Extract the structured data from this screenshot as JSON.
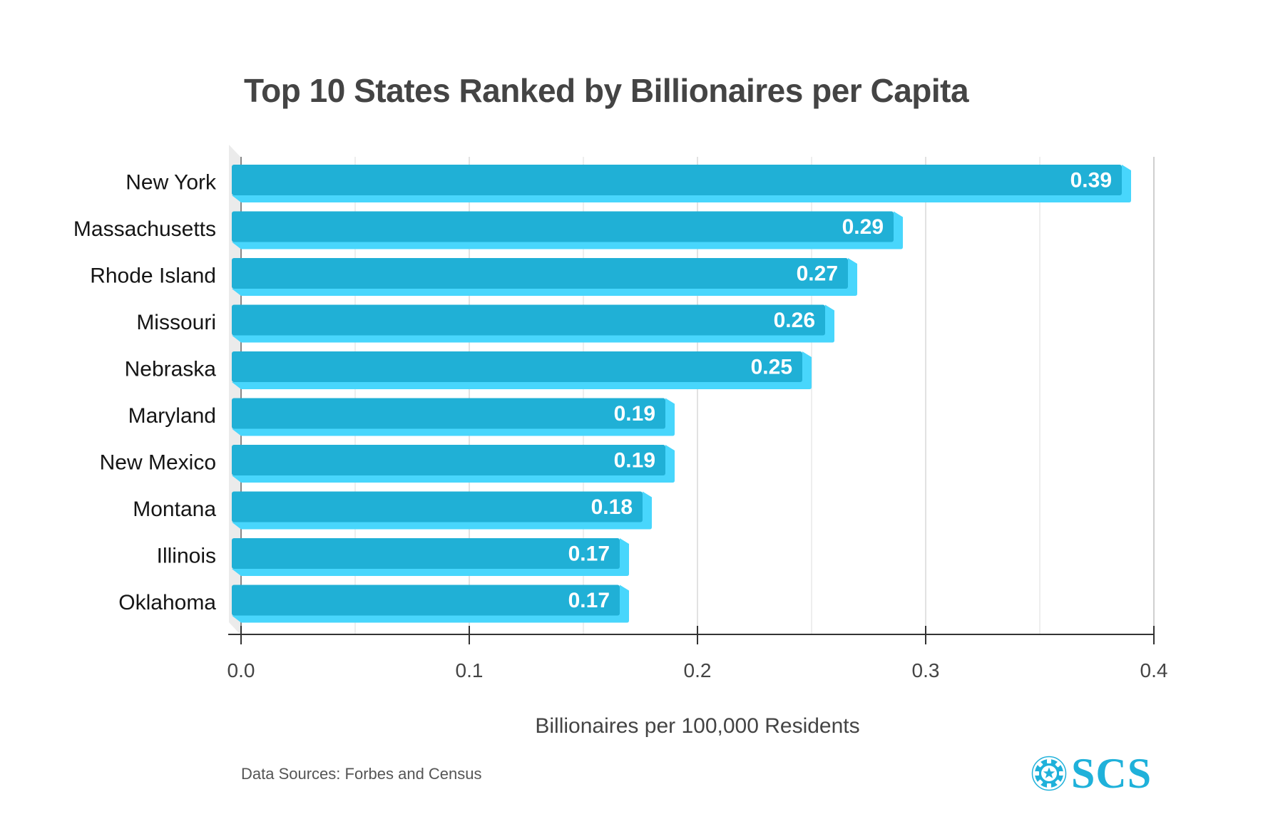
{
  "chart_data": {
    "type": "bar",
    "orientation": "horizontal",
    "title": "Top 10 States Ranked by Billionaires per Capita",
    "xlabel": "Billionaires per 100,000 Residents",
    "ylabel": "",
    "categories": [
      "New York",
      "Massachusetts",
      "Rhode Island",
      "Missouri",
      "Nebraska",
      "Maryland",
      "New Mexico",
      "Montana",
      "Illinois",
      "Oklahoma"
    ],
    "values": [
      0.39,
      0.29,
      0.27,
      0.26,
      0.25,
      0.19,
      0.19,
      0.18,
      0.17,
      0.17
    ],
    "value_labels": [
      "0.39",
      "0.29",
      "0.27",
      "0.26",
      "0.25",
      "0.19",
      "0.19",
      "0.18",
      "0.17",
      "0.17"
    ],
    "xlim": [
      0,
      0.4
    ],
    "x_ticks": [
      0.0,
      0.1,
      0.2,
      0.3,
      0.4
    ],
    "x_tick_labels": [
      "0.0",
      "0.1",
      "0.2",
      "0.3",
      "0.4"
    ],
    "minor_gridlines": [
      0.05,
      0.15,
      0.25,
      0.35
    ],
    "grid": true,
    "style": "3d",
    "colors": {
      "bar_front": "#20b0d6",
      "bar_side": "#48d6fc",
      "backdrop": "#ebebeb",
      "axis": "#333333",
      "gridline": "#e6e6e6"
    }
  },
  "footer": {
    "source": "Data Sources: Forbes and Census",
    "logo_text": "SCS",
    "logo_icon": "casino-chip-star-icon",
    "logo_color": "#1fb1da"
  }
}
